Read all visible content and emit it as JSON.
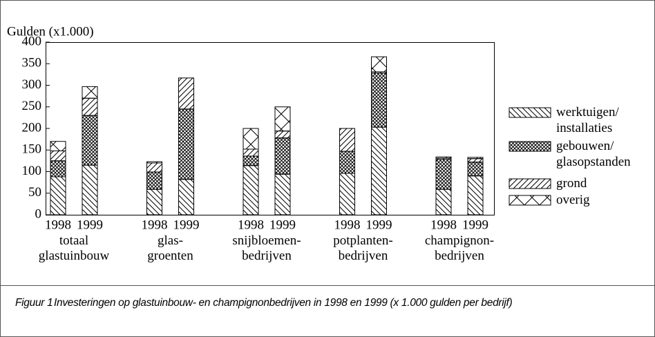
{
  "chart_data": {
    "type": "stacked-bar",
    "y_label": "Gulden (x1.000)",
    "categories": [
      "1998",
      "1999",
      "1998",
      "1999",
      "1998",
      "1999",
      "1998",
      "1999",
      "1998",
      "1999"
    ],
    "groups": [
      "totaal\nglastuinbouw",
      "glas-\ngroenten",
      "snijbloemen-\nbedrijven",
      "potplanten-\nbedrijven",
      "champignon-\nbedrijven"
    ],
    "series": [
      {
        "name": "werktuigen/\ninstallaties",
        "color": "#000000",
        "hatch": "back-diagonal",
        "values": [
          88,
          115,
          59,
          82,
          114,
          94,
          96,
          203,
          59,
          90
        ]
      },
      {
        "name": "gebouwen/\nglasopstanden",
        "color": "#000000",
        "hatch": "crosshatch",
        "values": [
          37,
          115,
          40,
          163,
          22,
          84,
          51,
          125,
          69,
          32
        ]
      },
      {
        "name": "grond",
        "color": "#000000",
        "hatch": "diagonal",
        "values": [
          23,
          40,
          21,
          72,
          16,
          16,
          53,
          3,
          3,
          8
        ]
      },
      {
        "name": "overig",
        "color": "#000000",
        "hatch": "x",
        "values": [
          22,
          27,
          3,
          0,
          48,
          56,
          0,
          35,
          3,
          3
        ]
      }
    ],
    "ylim": [
      0,
      400
    ],
    "yticks": [
      0,
      50,
      100,
      150,
      200,
      250,
      300,
      350,
      400
    ],
    "legend": "right"
  },
  "caption": {
    "label": "Figuur 1",
    "text": "Investeringen op glastuinbouw- en champignonbedrijven in 1998 en 1999 (x 1.000 gulden per bedrijf)"
  }
}
